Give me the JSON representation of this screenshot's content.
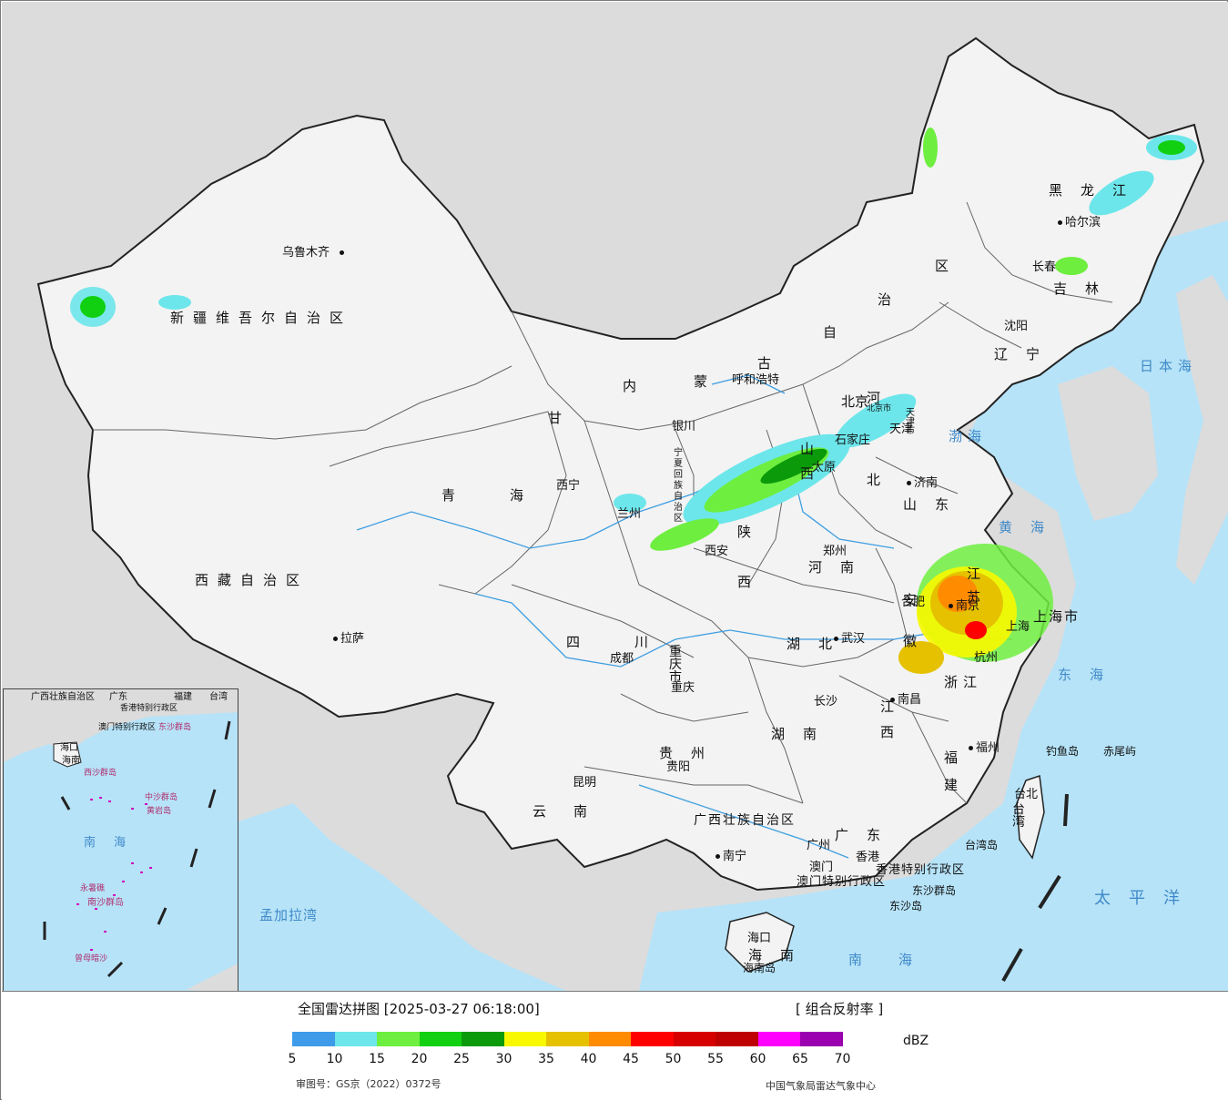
{
  "header": {
    "title": "全国雷达拼图 [2025-03-27 06:18:00]",
    "product": "[ 组合反射率 ]"
  },
  "legend": {
    "unit": "dBZ",
    "ticks": [
      "5",
      "10",
      "15",
      "20",
      "25",
      "30",
      "35",
      "40",
      "45",
      "50",
      "55",
      "60",
      "65",
      "70"
    ],
    "colors": [
      "#3d9be9",
      "#6ce6ea",
      "#6eee3f",
      "#11d011",
      "#0a9a0a",
      "#f8f800",
      "#e5c100",
      "#ff8c00",
      "#ff0000",
      "#d60000",
      "#be0000",
      "#ff00ff",
      "#9a00b0",
      "#b690ef"
    ]
  },
  "footer": {
    "review_no": "审图号：GS京（2022）0372号",
    "source": "中国气象局雷达气象中心"
  },
  "map": {
    "provinces": [
      "新疆维吾尔自治区",
      "西藏自治区",
      "青海",
      "内蒙古自治区",
      "甘",
      "宁夏回族自治区",
      "陕西",
      "山西",
      "河北",
      "山东",
      "河南",
      "湖北",
      "四川",
      "重庆市",
      "贵州",
      "云南",
      "广西壮族自治区",
      "湖南",
      "江西",
      "广东",
      "福建",
      "浙江",
      "江苏",
      "安徽",
      "黑龙江",
      "吉林",
      "辽宁",
      "台湾",
      "海南",
      "上海市",
      "北京市",
      "天津市",
      "香港特别行政区",
      "澳门特别行政区"
    ],
    "cities": [
      "乌鲁木齐",
      "拉萨",
      "西宁",
      "兰州",
      "银川",
      "呼和浩特",
      "北京",
      "天津",
      "石家庄",
      "太原",
      "济南",
      "西安",
      "郑州",
      "成都",
      "重庆",
      "武汉",
      "合肥",
      "南京",
      "上海",
      "杭州",
      "南昌",
      "长沙",
      "贵阳",
      "昆明",
      "南宁",
      "广州",
      "福州",
      "台北",
      "沈阳",
      "长春",
      "哈尔滨",
      "海口",
      "香港",
      "澳门"
    ],
    "seas": [
      "日本海",
      "渤海",
      "黄海",
      "东海",
      "太平洋",
      "南海",
      "孟加拉湾"
    ],
    "islands": [
      "钓鱼岛",
      "赤尾屿",
      "台湾岛",
      "东沙群岛",
      "东沙岛",
      "海南岛"
    ],
    "inset": {
      "labels": [
        "广西壮族自治区",
        "广东",
        "福建",
        "台湾",
        "海口",
        "香港特别行政区",
        "澳门特别行政区",
        "东沙群岛",
        "海南",
        "西沙群岛",
        "中沙群岛",
        "黄岩岛",
        "南海",
        "永暑礁",
        "南沙群岛",
        "曾母暗沙"
      ]
    }
  }
}
